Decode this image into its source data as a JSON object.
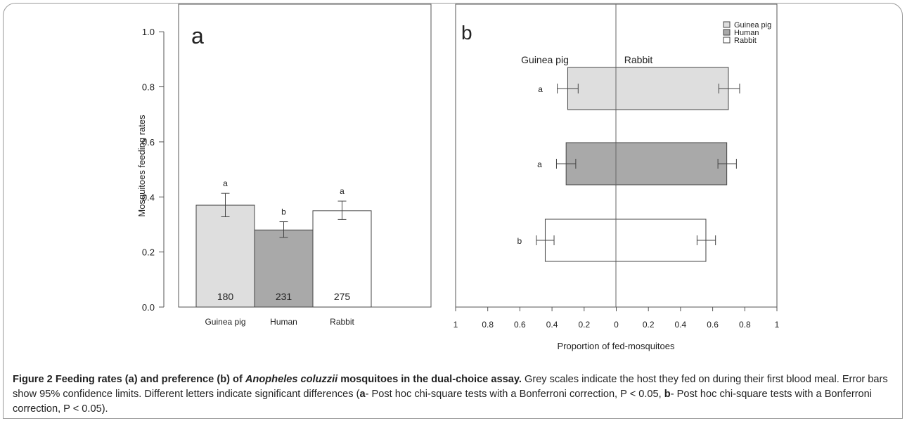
{
  "chart_data": [
    {
      "type": "bar",
      "panel_label": "a",
      "ylabel": "Mosquitoes feeding rates",
      "ylim": [
        0,
        1.1
      ],
      "yticks": [
        "0.0",
        "0.2",
        "0.4",
        "0.6",
        "0.8",
        "1.0"
      ],
      "categories": [
        "Guinea pig",
        "Human",
        "Rabbit"
      ],
      "values": [
        0.37,
        0.28,
        0.35
      ],
      "ci_low": [
        0.328,
        0.253,
        0.318
      ],
      "ci_high": [
        0.413,
        0.31,
        0.385
      ],
      "group_letters": [
        "a",
        "b",
        "a"
      ],
      "sample_sizes": [
        "180",
        "231",
        "275"
      ],
      "colors": [
        "#dedede",
        "#a9a9a9",
        "#ffffff"
      ]
    },
    {
      "type": "bar",
      "orientation": "horizontal",
      "panel_label": "b",
      "xlabel": "Proportion of fed-mosquitoes",
      "left_side_label": "Guinea pig",
      "right_side_label": "Rabbit",
      "xticks": [
        "1",
        "0.8",
        "0.6",
        "0.4",
        "0.2",
        "0",
        "0.2",
        "0.4",
        "0.6",
        "0.8",
        "1"
      ],
      "legend": {
        "position": "top-right",
        "entries": [
          "Guinea pig",
          "Human",
          "Rabbit"
        ]
      },
      "bars": [
        {
          "group": "Guinea pig",
          "left": 0.3,
          "right": 0.7,
          "left_ci": [
            0.235,
            0.365
          ],
          "right_ci": [
            0.64,
            0.77
          ],
          "letter": "a",
          "color": "#dedede"
        },
        {
          "group": "Human",
          "left": 0.31,
          "right": 0.69,
          "left_ci": [
            0.25,
            0.37
          ],
          "right_ci": [
            0.635,
            0.75
          ],
          "letter": "a",
          "color": "#a9a9a9"
        },
        {
          "group": "Rabbit",
          "left": 0.44,
          "right": 0.56,
          "left_ci": [
            0.385,
            0.495
          ],
          "right_ci": [
            0.505,
            0.62
          ],
          "letter": "b",
          "color": "#ffffff"
        }
      ]
    }
  ],
  "caption": {
    "figure_label": "Figure 2",
    "title_part1": "Feeding rates (a) and preference (b) of ",
    "title_species": "Anopheles coluzzii",
    "title_part2": " mosquitoes in the dual-choice assay.",
    "body_part1": " Grey scales indicate the host they fed on during their first blood meal. Error bars show 95% confidence limits. Different letters indicate significant differences (",
    "marker_a": "a",
    "body_part2": "- Post hoc chi-square tests with a Bonferroni correction, P < 0.05, ",
    "marker_b": "b",
    "body_part3": "- Post hoc chi-square tests with a Bonferroni correction, P < 0.05)."
  }
}
